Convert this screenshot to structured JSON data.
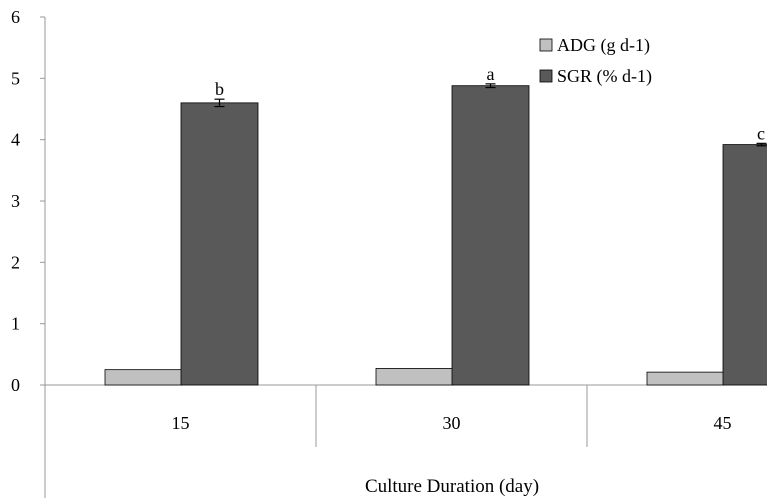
{
  "chart_data": {
    "type": "bar",
    "categories": [
      "15",
      "30",
      "45"
    ],
    "series": [
      {
        "name": "ADG (g d-1)",
        "values": [
          0.25,
          0.27,
          0.21
        ],
        "color": "#c0c0c0"
      },
      {
        "name": "SGR (% d-1)",
        "values": [
          4.6,
          4.88,
          3.92
        ],
        "errors": [
          0.06,
          0.03,
          0.02
        ],
        "color": "#595959",
        "labels": [
          "b",
          "a",
          "c"
        ]
      }
    ],
    "title": "",
    "xlabel": "Culture Duration (day)",
    "ylabel": "",
    "ylim": [
      0,
      6
    ],
    "yticks": [
      "0",
      "1",
      "2",
      "3",
      "4",
      "5",
      "6"
    ],
    "grid": false,
    "legend": "top-right"
  }
}
